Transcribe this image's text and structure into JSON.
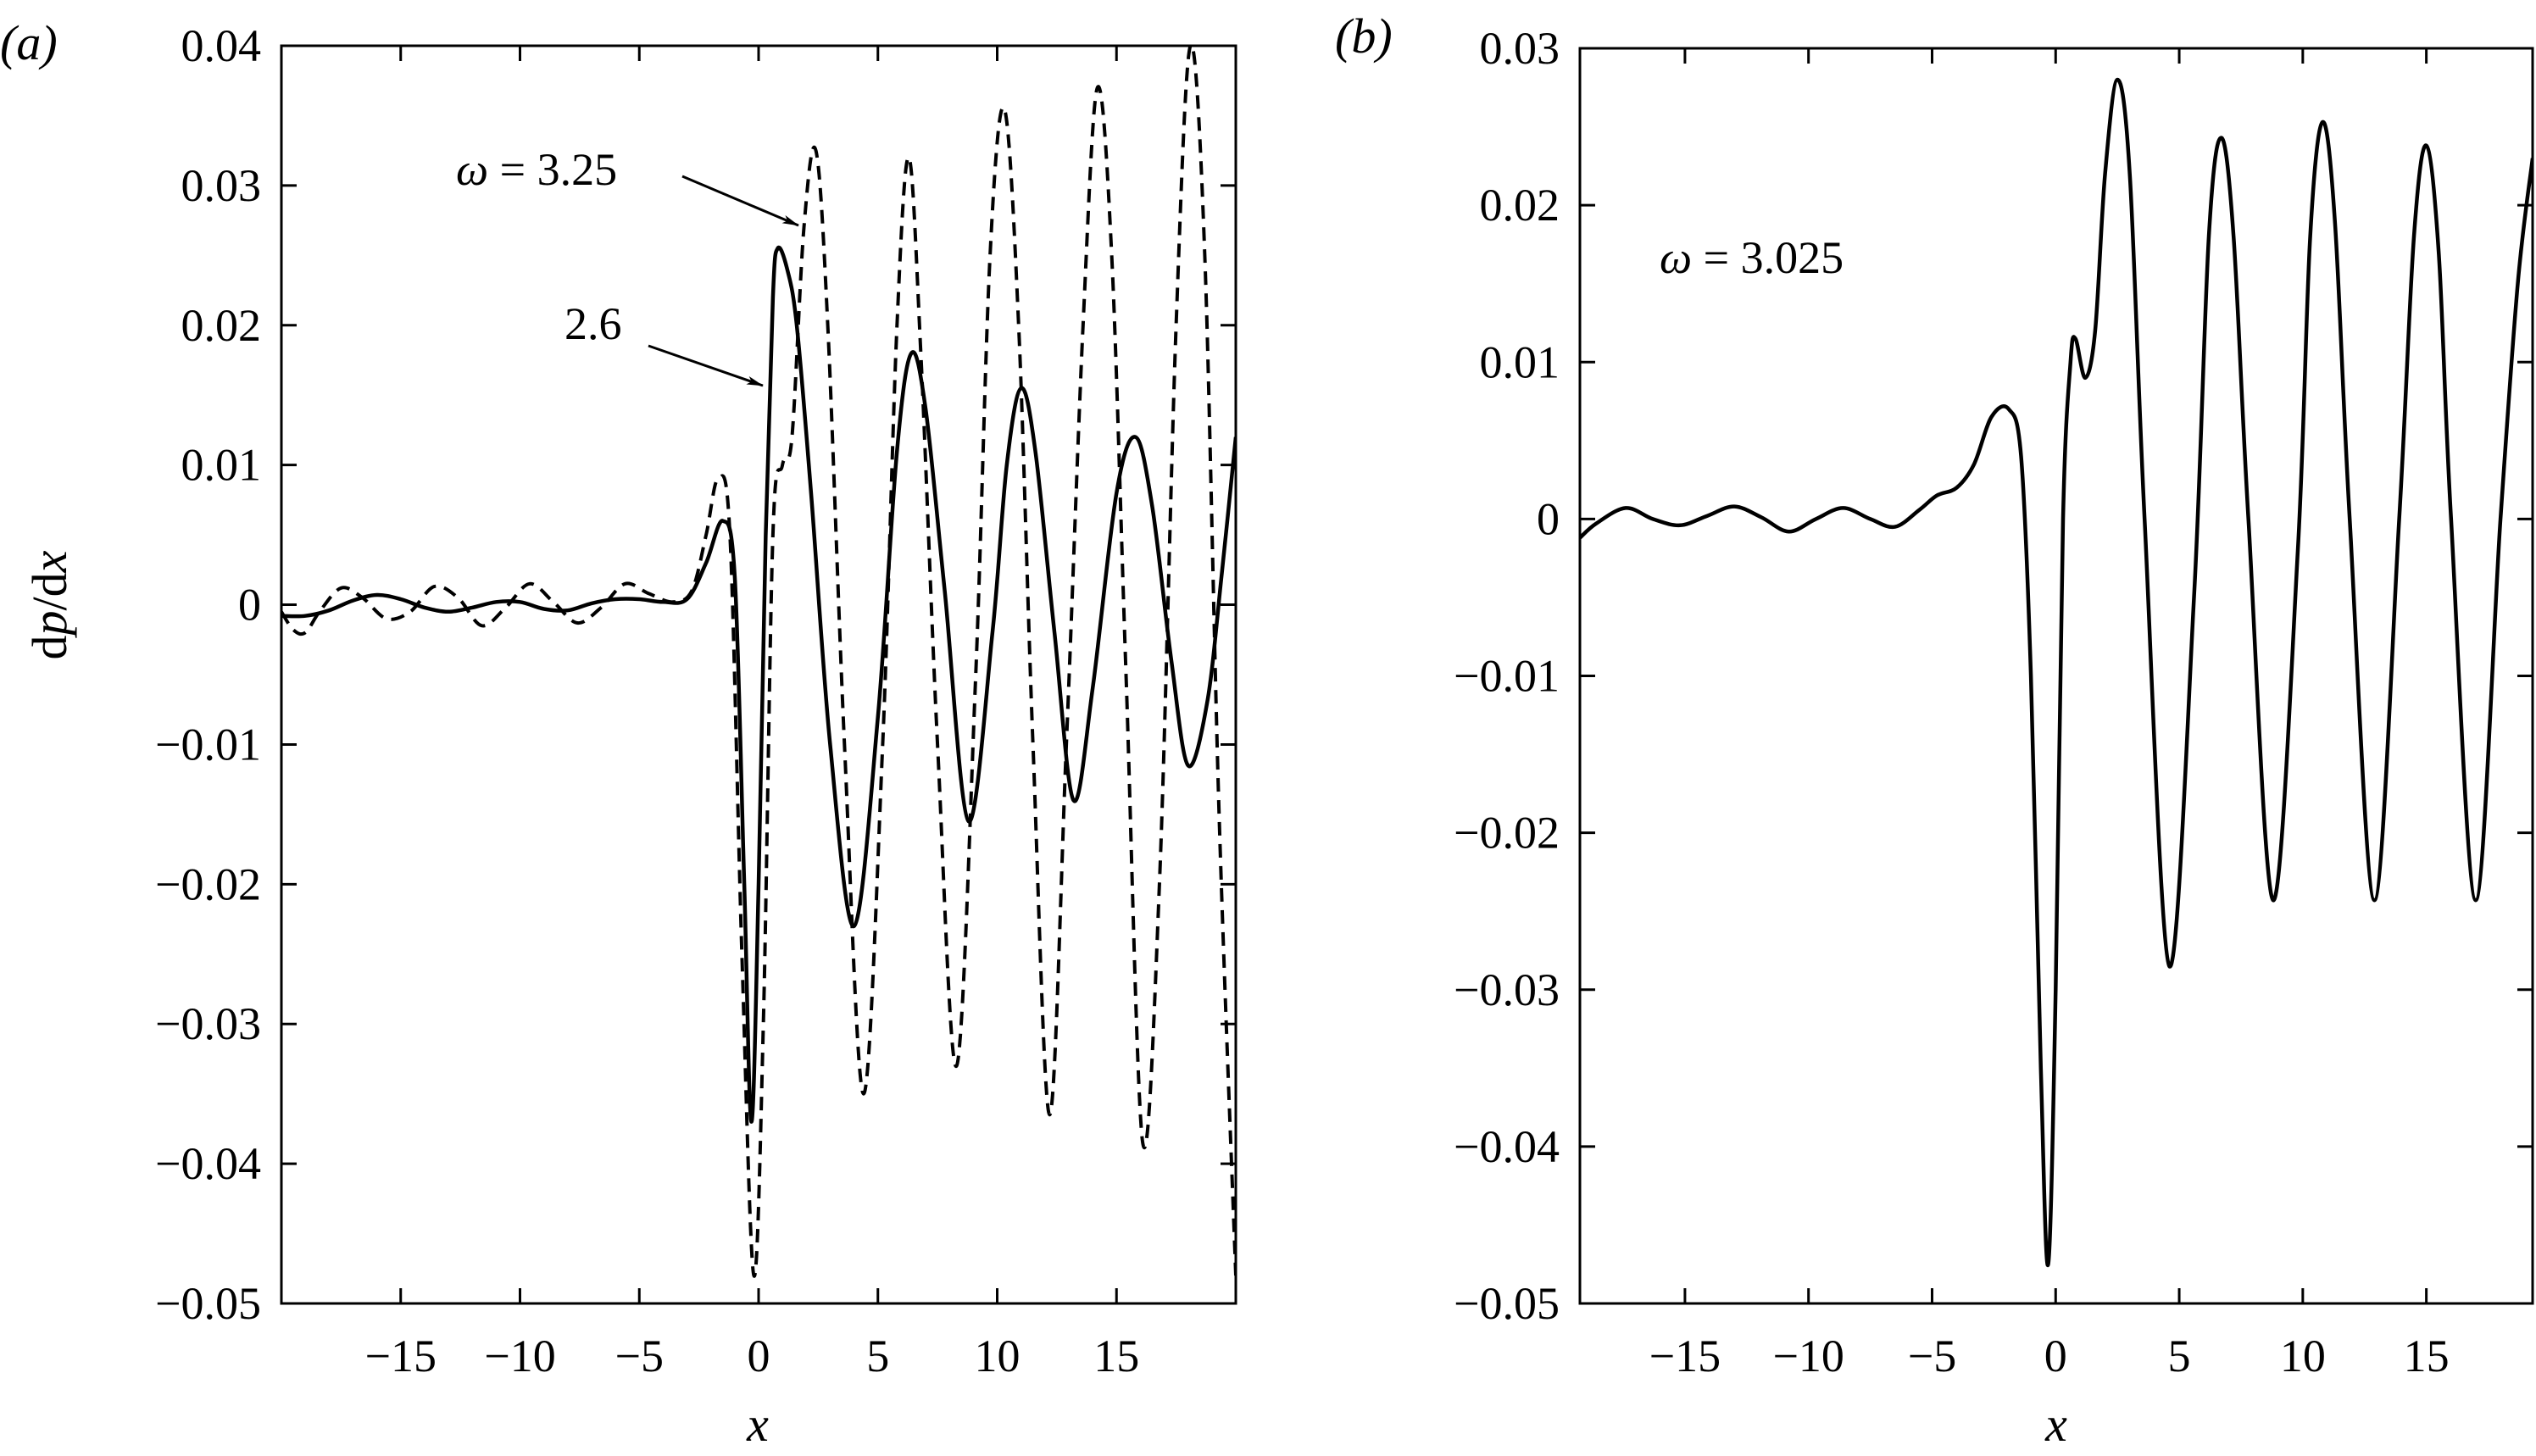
{
  "figure": {
    "panels": [
      {
        "id": "a",
        "label": "(a)",
        "ylabel_parts": [
          "d",
          "p",
          "/d",
          "x"
        ],
        "xlabel": "x",
        "x_ticks": [
          "−15",
          "−10",
          "−5",
          "0",
          "5",
          "10",
          "15"
        ],
        "y_ticks": [
          "0.04",
          "0.03",
          "0.02",
          "0.01",
          "0",
          "−0.01",
          "−0.02",
          "−0.03",
          "−0.04",
          "−0.05"
        ],
        "annotations": [
          {
            "text_omega": "ω",
            "text_eq": " = 3.25",
            "target_series": "omega=3.25"
          },
          {
            "text": "2.6",
            "target_series": "omega=2.6"
          }
        ]
      },
      {
        "id": "b",
        "label": "(b)",
        "xlabel": "x",
        "x_ticks": [
          "−15",
          "−10",
          "−5",
          "0",
          "5",
          "10",
          "15"
        ],
        "y_ticks": [
          "0.03",
          "0.02",
          "0.01",
          "0",
          "−0.01",
          "−0.02",
          "−0.03",
          "−0.04",
          "−0.05"
        ],
        "annotations": [
          {
            "text_omega": "ω",
            "text_eq": " = 3.025"
          }
        ]
      }
    ]
  },
  "chart_data": [
    {
      "panel": "(a)",
      "type": "line",
      "title": "",
      "xlabel": "x",
      "ylabel": "dp/dx",
      "xlim": [
        -20,
        20
      ],
      "ylim": [
        -0.05,
        0.04
      ],
      "x_ticks": [
        -15,
        -10,
        -5,
        0,
        5,
        10,
        15
      ],
      "y_ticks": [
        0.04,
        0.03,
        0.02,
        0.01,
        0,
        -0.01,
        -0.02,
        -0.03,
        -0.04,
        -0.05
      ],
      "grid": false,
      "legend": "none (inline arrow annotations)",
      "series": [
        {
          "name": "ω = 2.6",
          "style": "solid",
          "x": [
            -20,
            -19,
            -18,
            -17,
            -16,
            -15,
            -14,
            -13,
            -12,
            -11,
            -10,
            -9,
            -8,
            -7,
            -6,
            -5,
            -4,
            -3,
            -2.2,
            -1.5,
            -1.0,
            -0.6,
            -0.3,
            0.0,
            0.3,
            0.6,
            0.8,
            1.2,
            1.6,
            2.2,
            3.0,
            4.0,
            5.0,
            5.8,
            6.4,
            7.0,
            7.8,
            8.8,
            9.8,
            10.4,
            11.0,
            11.6,
            12.4,
            13.2,
            14.0,
            15.0,
            15.8,
            16.5,
            17.3,
            18.0,
            18.8,
            19.4,
            20.0
          ],
          "y": [
            -0.0008,
            -0.0008,
            -0.0004,
            0.0003,
            0.0007,
            0.0004,
            -0.0002,
            -0.0005,
            -0.0002,
            0.0002,
            0.0002,
            -0.0003,
            -0.0004,
            0.0001,
            0.0004,
            0.0004,
            0.0002,
            0.0004,
            0.003,
            0.006,
            0.002,
            -0.02,
            -0.037,
            -0.02,
            0.005,
            0.022,
            0.0255,
            0.024,
            0.02,
            0.008,
            -0.01,
            -0.023,
            -0.008,
            0.011,
            0.018,
            0.014,
            0.001,
            -0.0155,
            -0.002,
            0.01,
            0.0155,
            0.011,
            -0.002,
            -0.014,
            -0.006,
            0.008,
            0.012,
            0.007,
            -0.004,
            -0.0115,
            -0.007,
            0.002,
            0.012
          ]
        },
        {
          "name": "ω = 3.25",
          "style": "dashed",
          "x": [
            -20,
            -19.5,
            -19,
            -18.4,
            -17.5,
            -16.6,
            -15.6,
            -14.6,
            -13.6,
            -12.6,
            -11.6,
            -10.6,
            -9.6,
            -8.6,
            -7.6,
            -6.6,
            -5.6,
            -4.6,
            -3.6,
            -2.8,
            -2.2,
            -1.7,
            -1.2,
            -0.7,
            -0.2,
            0.2,
            0.6,
            1.0,
            1.4,
            1.9,
            2.4,
            2.9,
            3.6,
            4.4,
            5.2,
            5.8,
            6.3,
            6.8,
            7.5,
            8.3,
            9.1,
            9.7,
            10.3,
            10.9,
            11.5,
            12.2,
            12.9,
            13.6,
            14.2,
            14.8,
            15.4,
            16.1,
            16.8,
            17.5,
            18.1,
            18.7,
            19.3,
            20.0
          ],
          "y": [
            -0.0005,
            -0.0018,
            -0.002,
            -0.0005,
            0.0012,
            0.0005,
            -0.001,
            -0.0005,
            0.0013,
            0.0005,
            -0.0015,
            -0.0002,
            0.0015,
            0.0002,
            -0.0013,
            -0.0002,
            0.0015,
            0.0008,
            0.0002,
            0.001,
            0.005,
            0.009,
            0.005,
            -0.025,
            -0.048,
            -0.03,
            0.005,
            0.01,
            0.012,
            0.027,
            0.0325,
            0.02,
            -0.01,
            -0.035,
            -0.01,
            0.02,
            0.032,
            0.018,
            -0.01,
            -0.033,
            -0.005,
            0.025,
            0.0355,
            0.02,
            -0.01,
            -0.0365,
            -0.01,
            0.02,
            0.037,
            0.025,
            -0.005,
            -0.0385,
            -0.02,
            0.02,
            0.04,
            0.025,
            -0.015,
            -0.048
          ]
        }
      ],
      "annotations": [
        {
          "text": "ω = 3.25",
          "arrow_to": [
            1.8,
            0.027
          ]
        },
        {
          "text": "2.6",
          "arrow_to": [
            0.4,
            0.0155
          ]
        }
      ]
    },
    {
      "panel": "(b)",
      "type": "line",
      "title": "",
      "xlabel": "x",
      "ylabel": "",
      "xlim": [
        -19.25,
        19.3
      ],
      "ylim": [
        -0.05,
        0.03
      ],
      "x_ticks": [
        -15,
        -10,
        -5,
        0,
        5,
        10,
        15
      ],
      "y_ticks": [
        0.03,
        0.02,
        0.01,
        0,
        -0.01,
        -0.02,
        -0.03,
        -0.04,
        -0.05
      ],
      "grid": false,
      "legend": "none (inline label)",
      "series": [
        {
          "name": "ω = 3.025",
          "style": "solid",
          "x": [
            -19.25,
            -18.6,
            -17.4,
            -16.3,
            -15.2,
            -14.1,
            -13.0,
            -11.9,
            -10.8,
            -9.7,
            -8.6,
            -7.5,
            -6.5,
            -5.5,
            -4.8,
            -4.0,
            -3.3,
            -2.6,
            -1.9,
            -1.4,
            -1.0,
            -0.6,
            -0.3,
            0.0,
            0.3,
            0.6,
            0.8,
            1.2,
            1.6,
            2.0,
            2.5,
            3.0,
            3.6,
            4.6,
            5.6,
            6.2,
            6.7,
            7.2,
            7.8,
            8.8,
            9.8,
            10.3,
            10.8,
            11.3,
            11.9,
            12.9,
            13.9,
            14.5,
            15.0,
            15.5,
            16.0,
            17.0,
            18.0,
            18.7,
            19.3
          ],
          "y": [
            -0.0012,
            -0.0003,
            0.0007,
            0.0,
            -0.0004,
            0.0002,
            0.0008,
            0.0001,
            -0.0008,
            0.0,
            0.0007,
            0.0,
            -0.0005,
            0.0006,
            0.0015,
            0.002,
            0.0035,
            0.0065,
            0.007,
            0.004,
            -0.01,
            -0.035,
            -0.0475,
            -0.03,
            0.0,
            0.01,
            0.0115,
            0.009,
            0.012,
            0.022,
            0.028,
            0.022,
            0.0,
            -0.0285,
            -0.005,
            0.018,
            0.0243,
            0.018,
            0.0,
            -0.0243,
            -0.002,
            0.018,
            0.0253,
            0.019,
            0.0,
            -0.0243,
            0.0,
            0.018,
            0.0238,
            0.017,
            0.0,
            -0.0243,
            0.0,
            0.015,
            0.023
          ]
        }
      ],
      "annotations": [
        {
          "text": "ω = 3.025"
        }
      ]
    }
  ]
}
